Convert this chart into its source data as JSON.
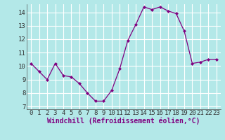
{
  "x": [
    0,
    1,
    2,
    3,
    4,
    5,
    6,
    7,
    8,
    9,
    10,
    11,
    12,
    13,
    14,
    15,
    16,
    17,
    18,
    19,
    20,
    21,
    22,
    23
  ],
  "y": [
    10.2,
    9.6,
    9.0,
    10.2,
    9.3,
    9.2,
    8.7,
    8.0,
    7.4,
    7.4,
    8.2,
    9.8,
    11.9,
    13.1,
    14.4,
    14.2,
    14.4,
    14.1,
    13.9,
    12.6,
    10.2,
    10.3,
    10.5,
    10.5
  ],
  "line_color": "#800080",
  "marker": "D",
  "marker_size": 2.0,
  "bg_color": "#b3e8e8",
  "grid_color": "#ffffff",
  "xlabel": "Windchill (Refroidissement éolien,°C)",
  "ylim": [
    6.8,
    14.6
  ],
  "xlim": [
    -0.5,
    23.5
  ],
  "yticks": [
    7,
    8,
    9,
    10,
    11,
    12,
    13,
    14
  ],
  "xticks": [
    0,
    1,
    2,
    3,
    4,
    5,
    6,
    7,
    8,
    9,
    10,
    11,
    12,
    13,
    14,
    15,
    16,
    17,
    18,
    19,
    20,
    21,
    22,
    23
  ],
  "label_fontsize": 7,
  "tick_fontsize": 6.5
}
